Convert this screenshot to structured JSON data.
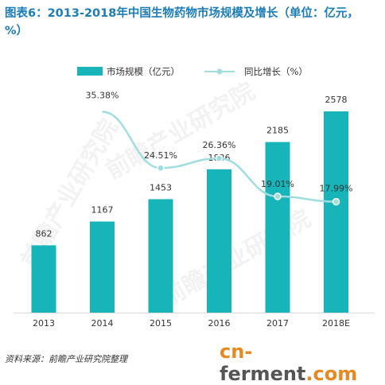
{
  "title": "图表6：2013-2018年中国生物药物市场规模及增长（单位：亿元，%）",
  "legend": {
    "bar_label": "市场规模（亿元）",
    "line_label": "同比增长（%）"
  },
  "source": "资料来源：前瞻产业研究院整理",
  "watermark": "前瞻产业研究院",
  "footer_logo": {
    "part1": "cn-",
    "part2": "ferment",
    "part3": ".com"
  },
  "colors": {
    "bar": "#17b4b9",
    "line": "#9fdde0",
    "title": "#1c7db7"
  },
  "chart_data": {
    "type": "bar",
    "categories": [
      "2013",
      "2014",
      "2015",
      "2016",
      "2017",
      "2018E"
    ],
    "series": [
      {
        "name": "市场规模（亿元）",
        "type": "bar",
        "values": [
          862,
          1167,
          1453,
          1836,
          2185,
          2578
        ],
        "labels": [
          "862",
          "1167",
          "1453",
          "1836",
          "2185",
          "2578"
        ]
      },
      {
        "name": "同比增长（%）",
        "type": "line",
        "values": [
          null,
          35.38,
          24.51,
          26.36,
          19.01,
          17.99
        ],
        "labels": [
          "",
          "35.38%",
          "24.51%",
          "26.36%",
          "19.01%",
          "17.99%"
        ]
      }
    ]
  }
}
